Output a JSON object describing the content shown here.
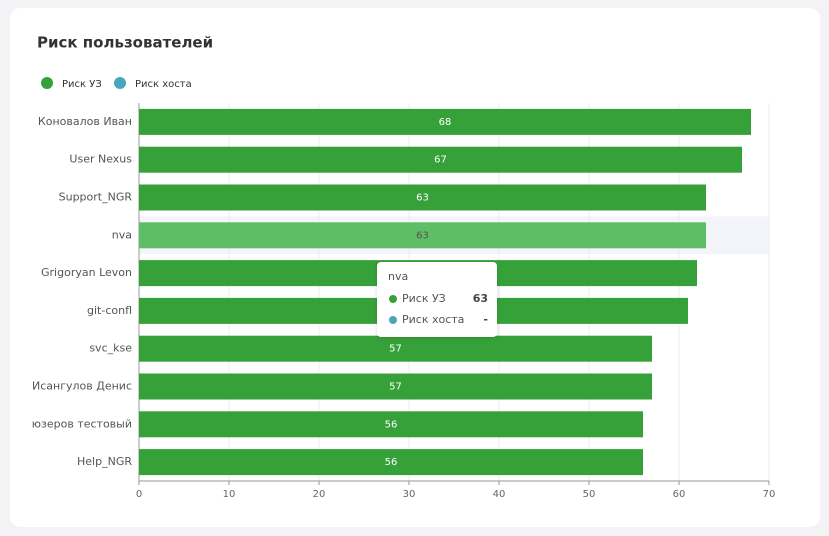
{
  "chart_data": {
    "type": "hbar",
    "title": "Риск пользователей",
    "categories": [
      "Коновалов Иван",
      "User Nexus",
      "Support_NGR",
      "nva",
      "Grigoryan Levon",
      "git-confl",
      "svc_kse",
      "Исангулов Денис",
      "юзеров тестовый",
      "Help_NGR"
    ],
    "series": [
      {
        "name": "Риск УЗ",
        "color": "#36a138",
        "values": [
          68,
          67,
          63,
          63,
          62,
          61,
          57,
          57,
          56,
          56
        ]
      },
      {
        "name": "Риск хоста",
        "color": "#4aa6bf",
        "values": [
          null,
          null,
          null,
          null,
          null,
          null,
          null,
          null,
          null,
          null
        ]
      }
    ],
    "xlim": [
      0,
      70
    ],
    "xticks": [
      0,
      10,
      20,
      30,
      40,
      50,
      60,
      70
    ],
    "grid": true,
    "legend": "top-left",
    "tooltip": {
      "highlighted": 3,
      "missing": "-"
    }
  }
}
